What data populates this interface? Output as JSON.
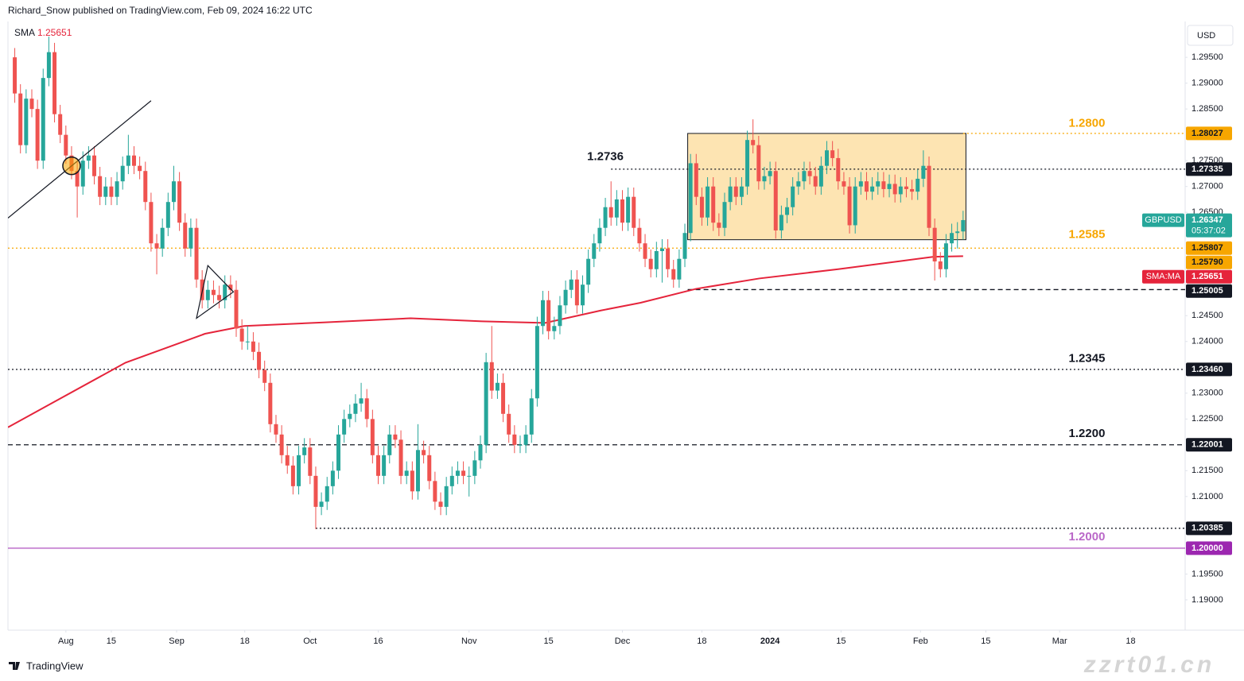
{
  "header": {
    "text": "Richard_Snow published on TradingView.com, Feb 09, 2024 16:22 UTC"
  },
  "footer": {
    "brand": "TradingView",
    "watermark": "zzrt01.cn"
  },
  "chart_data": {
    "type": "candlestick",
    "currency": "USD",
    "up_color": "#26a69a",
    "down_color": "#ef5350",
    "xlim": [
      -1.2,
      206.1
    ],
    "xticks": [
      {
        "value": 9,
        "label": "Aug"
      },
      {
        "value": 17,
        "label": "15"
      },
      {
        "value": 28.5,
        "label": "Sep"
      },
      {
        "value": 40.5,
        "label": "18"
      },
      {
        "value": 52,
        "label": "Oct"
      },
      {
        "value": 64,
        "label": "16"
      },
      {
        "value": 80,
        "label": "Nov"
      },
      {
        "value": 94,
        "label": "15"
      },
      {
        "value": 107,
        "label": "Dec"
      },
      {
        "value": 121,
        "label": "18"
      },
      {
        "value": 133,
        "label": "2024"
      },
      {
        "value": 145.5,
        "label": "15"
      },
      {
        "value": 159.5,
        "label": "Feb"
      },
      {
        "value": 171,
        "label": "15"
      },
      {
        "value": 184,
        "label": "Mar"
      },
      {
        "value": 196.5,
        "label": "18"
      }
    ],
    "ylim": [
      1.18414,
      1.30194
    ],
    "yticks": [
      {
        "value": 1.295,
        "label": "1.29500"
      },
      {
        "value": 1.29,
        "label": "1.29000"
      },
      {
        "value": 1.285,
        "label": "1.28500"
      },
      {
        "value": 1.275,
        "label": "1.27500"
      },
      {
        "value": 1.27,
        "label": "1.27000"
      },
      {
        "value": 1.265,
        "label": "1.26500"
      },
      {
        "value": 1.245,
        "label": "1.24500"
      },
      {
        "value": 1.24,
        "label": "1.24000"
      },
      {
        "value": 1.23,
        "label": "1.23000"
      },
      {
        "value": 1.225,
        "label": "1.22500"
      },
      {
        "value": 1.215,
        "label": "1.21500"
      },
      {
        "value": 1.21,
        "label": "1.21000"
      },
      {
        "value": 1.195,
        "label": "1.19500"
      },
      {
        "value": 1.19,
        "label": "1.19000"
      }
    ],
    "candles": [
      [
        1.295,
        1.2968,
        1.2862,
        1.288
      ],
      [
        1.288,
        1.2898,
        1.2764,
        1.278
      ],
      [
        1.278,
        1.2888,
        1.2764,
        1.287
      ],
      [
        1.287,
        1.2888,
        1.2834,
        1.285
      ],
      [
        1.285,
        1.2868,
        1.2734,
        1.275
      ],
      [
        1.275,
        1.2928,
        1.2734,
        1.291
      ],
      [
        1.291,
        1.299,
        1.2894,
        1.296
      ],
      [
        1.296,
        1.2978,
        1.2824,
        1.284
      ],
      [
        1.284,
        1.2858,
        1.2784,
        1.28
      ],
      [
        1.28,
        1.2818,
        1.2744,
        1.276
      ],
      [
        1.276,
        1.2778,
        1.2714,
        1.273
      ],
      [
        1.273,
        1.2748,
        1.264,
        1.27
      ],
      [
        1.27,
        1.2768,
        1.2684,
        1.275
      ],
      [
        1.275,
        1.2778,
        1.2734,
        1.276
      ],
      [
        1.276,
        1.2778,
        1.2704,
        1.272
      ],
      [
        1.272,
        1.2738,
        1.2664,
        1.268
      ],
      [
        1.268,
        1.2718,
        1.2664,
        1.27
      ],
      [
        1.27,
        1.2718,
        1.2664,
        1.268
      ],
      [
        1.268,
        1.2728,
        1.2664,
        1.271
      ],
      [
        1.271,
        1.2758,
        1.2694,
        1.274
      ],
      [
        1.274,
        1.28,
        1.2724,
        1.276
      ],
      [
        1.276,
        1.2778,
        1.2724,
        1.274
      ],
      [
        1.274,
        1.2758,
        1.2714,
        1.273
      ],
      [
        1.273,
        1.2748,
        1.2654,
        1.267
      ],
      [
        1.267,
        1.2688,
        1.2574,
        1.259
      ],
      [
        1.259,
        1.2608,
        1.253,
        1.258
      ],
      [
        1.258,
        1.2638,
        1.2564,
        1.262
      ],
      [
        1.262,
        1.2688,
        1.2604,
        1.267
      ],
      [
        1.267,
        1.274,
        1.2654,
        1.271
      ],
      [
        1.271,
        1.2728,
        1.2614,
        1.263
      ],
      [
        1.263,
        1.2648,
        1.2564,
        1.258
      ],
      [
        1.258,
        1.2638,
        1.2564,
        1.262
      ],
      [
        1.262,
        1.2638,
        1.2504,
        1.252
      ],
      [
        1.252,
        1.2538,
        1.2464,
        1.248
      ],
      [
        1.248,
        1.2518,
        1.2464,
        1.25
      ],
      [
        1.25,
        1.2518,
        1.2474,
        1.249
      ],
      [
        1.249,
        1.2508,
        1.2464,
        1.248
      ],
      [
        1.248,
        1.2528,
        1.2464,
        1.251
      ],
      [
        1.251,
        1.2528,
        1.2484,
        1.25
      ],
      [
        1.25,
        1.2518,
        1.2409,
        1.2425
      ],
      [
        1.2425,
        1.2443,
        1.2384,
        1.24
      ],
      [
        1.24,
        1.243,
        1.2384,
        1.24
      ],
      [
        1.24,
        1.2418,
        1.2364,
        1.238
      ],
      [
        1.238,
        1.2398,
        1.2329,
        1.2345
      ],
      [
        1.2345,
        1.2363,
        1.2304,
        1.232
      ],
      [
        1.232,
        1.2338,
        1.2224,
        1.224
      ],
      [
        1.224,
        1.2258,
        1.2204,
        1.222
      ],
      [
        1.222,
        1.2238,
        1.2164,
        1.218
      ],
      [
        1.218,
        1.2198,
        1.2144,
        1.216
      ],
      [
        1.216,
        1.2178,
        1.2104,
        1.212
      ],
      [
        1.212,
        1.2198,
        1.2104,
        1.218
      ],
      [
        1.218,
        1.2213,
        1.2164,
        1.2195
      ],
      [
        1.2195,
        1.2213,
        1.2124,
        1.214
      ],
      [
        1.214,
        1.2158,
        1.2037,
        1.208
      ],
      [
        1.208,
        1.2108,
        1.2064,
        1.209
      ],
      [
        1.209,
        1.2138,
        1.2074,
        1.212
      ],
      [
        1.212,
        1.2168,
        1.2104,
        1.215
      ],
      [
        1.215,
        1.2238,
        1.2134,
        1.222
      ],
      [
        1.222,
        1.2268,
        1.2204,
        1.225
      ],
      [
        1.225,
        1.2278,
        1.2234,
        1.226
      ],
      [
        1.226,
        1.2298,
        1.2244,
        1.228
      ],
      [
        1.228,
        1.232,
        1.2264,
        1.229
      ],
      [
        1.229,
        1.2308,
        1.2234,
        1.225
      ],
      [
        1.225,
        1.2268,
        1.2164,
        1.218
      ],
      [
        1.218,
        1.2198,
        1.2124,
        1.214
      ],
      [
        1.214,
        1.2198,
        1.2124,
        1.218
      ],
      [
        1.218,
        1.2238,
        1.2164,
        1.222
      ],
      [
        1.222,
        1.2238,
        1.2194,
        1.221
      ],
      [
        1.221,
        1.2228,
        1.2124,
        1.214
      ],
      [
        1.214,
        1.2168,
        1.2124,
        1.215
      ],
      [
        1.215,
        1.2168,
        1.2094,
        1.211
      ],
      [
        1.211,
        1.224,
        1.2094,
        1.219
      ],
      [
        1.219,
        1.2208,
        1.2164,
        1.218
      ],
      [
        1.218,
        1.2198,
        1.2114,
        1.213
      ],
      [
        1.213,
        1.2148,
        1.2074,
        1.209
      ],
      [
        1.209,
        1.2108,
        1.2064,
        1.208
      ],
      [
        1.208,
        1.2138,
        1.2064,
        1.212
      ],
      [
        1.212,
        1.2158,
        1.2104,
        1.214
      ],
      [
        1.214,
        1.2168,
        1.2124,
        1.215
      ],
      [
        1.215,
        1.2168,
        1.2124,
        1.214
      ],
      [
        1.214,
        1.2158,
        1.21,
        1.214
      ],
      [
        1.214,
        1.2188,
        1.2124,
        1.217
      ],
      [
        1.217,
        1.2218,
        1.2154,
        1.22
      ],
      [
        1.22,
        1.2378,
        1.2184,
        1.236
      ],
      [
        1.236,
        1.243,
        1.2289,
        1.2305
      ],
      [
        1.2305,
        1.2338,
        1.2289,
        1.232
      ],
      [
        1.232,
        1.2338,
        1.2244,
        1.226
      ],
      [
        1.226,
        1.2278,
        1.2204,
        1.222
      ],
      [
        1.222,
        1.2238,
        1.2184,
        1.22
      ],
      [
        1.22,
        1.2218,
        1.2184,
        1.22
      ],
      [
        1.22,
        1.2238,
        1.2184,
        1.222
      ],
      [
        1.222,
        1.2308,
        1.2204,
        1.229
      ],
      [
        1.229,
        1.2448,
        1.2274,
        1.243
      ],
      [
        1.243,
        1.2498,
        1.2414,
        1.248
      ],
      [
        1.248,
        1.2498,
        1.2404,
        1.242
      ],
      [
        1.242,
        1.2448,
        1.2404,
        1.243
      ],
      [
        1.243,
        1.2488,
        1.2414,
        1.247
      ],
      [
        1.247,
        1.2518,
        1.2454,
        1.25
      ],
      [
        1.25,
        1.2538,
        1.2484,
        1.252
      ],
      [
        1.252,
        1.2538,
        1.2454,
        1.247
      ],
      [
        1.247,
        1.2528,
        1.2454,
        1.251
      ],
      [
        1.251,
        1.2578,
        1.2494,
        1.256
      ],
      [
        1.256,
        1.2608,
        1.2544,
        1.259
      ],
      [
        1.259,
        1.2638,
        1.2574,
        1.262
      ],
      [
        1.262,
        1.2678,
        1.2604,
        1.266
      ],
      [
        1.266,
        1.271,
        1.2624,
        1.264
      ],
      [
        1.264,
        1.2693,
        1.2624,
        1.2675
      ],
      [
        1.2675,
        1.2693,
        1.2614,
        1.263
      ],
      [
        1.263,
        1.2698,
        1.2614,
        1.268
      ],
      [
        1.268,
        1.2698,
        1.2604,
        1.262
      ],
      [
        1.262,
        1.2638,
        1.2574,
        1.259
      ],
      [
        1.259,
        1.2608,
        1.2544,
        1.256
      ],
      [
        1.256,
        1.2578,
        1.2524,
        1.254
      ],
      [
        1.254,
        1.2593,
        1.2524,
        1.2575
      ],
      [
        1.2575,
        1.2598,
        1.2514,
        1.258
      ],
      [
        1.258,
        1.2598,
        1.2524,
        1.254
      ],
      [
        1.254,
        1.2558,
        1.2504,
        1.252
      ],
      [
        1.252,
        1.2578,
        1.2504,
        1.256
      ],
      [
        1.256,
        1.2628,
        1.2544,
        1.261
      ],
      [
        1.261,
        1.2763,
        1.2594,
        1.2745
      ],
      [
        1.2745,
        1.2763,
        1.2664,
        1.268
      ],
      [
        1.268,
        1.2698,
        1.2624,
        1.264
      ],
      [
        1.264,
        1.2718,
        1.2624,
        1.27
      ],
      [
        1.27,
        1.2718,
        1.2614,
        1.263
      ],
      [
        1.263,
        1.2648,
        1.2604,
        1.262
      ],
      [
        1.262,
        1.2688,
        1.2604,
        1.267
      ],
      [
        1.267,
        1.2718,
        1.2654,
        1.27
      ],
      [
        1.27,
        1.2718,
        1.2664,
        1.268
      ],
      [
        1.268,
        1.2718,
        1.2664,
        1.27
      ],
      [
        1.27,
        1.2808,
        1.2684,
        1.279
      ],
      [
        1.279,
        1.283,
        1.2764,
        1.278
      ],
      [
        1.278,
        1.2798,
        1.2694,
        1.271
      ],
      [
        1.271,
        1.2738,
        1.2694,
        1.272
      ],
      [
        1.272,
        1.2748,
        1.2704,
        1.273
      ],
      [
        1.273,
        1.2748,
        1.2599,
        1.2615
      ],
      [
        1.2615,
        1.2663,
        1.2599,
        1.2645
      ],
      [
        1.2645,
        1.2678,
        1.2629,
        1.266
      ],
      [
        1.266,
        1.2718,
        1.2644,
        1.27
      ],
      [
        1.27,
        1.2728,
        1.2684,
        1.271
      ],
      [
        1.271,
        1.2748,
        1.2694,
        1.273
      ],
      [
        1.273,
        1.2748,
        1.2704,
        1.272
      ],
      [
        1.272,
        1.2738,
        1.2684,
        1.27
      ],
      [
        1.27,
        1.2758,
        1.2684,
        1.274
      ],
      [
        1.274,
        1.2788,
        1.2724,
        1.277
      ],
      [
        1.277,
        1.2788,
        1.2739,
        1.2755
      ],
      [
        1.2755,
        1.2773,
        1.2694,
        1.271
      ],
      [
        1.271,
        1.2728,
        1.2684,
        1.27
      ],
      [
        1.27,
        1.2718,
        1.2609,
        1.2625
      ],
      [
        1.2625,
        1.2718,
        1.2609,
        1.27
      ],
      [
        1.27,
        1.2728,
        1.2684,
        1.271
      ],
      [
        1.271,
        1.2728,
        1.2674,
        1.269
      ],
      [
        1.269,
        1.2718,
        1.2674,
        1.27
      ],
      [
        1.27,
        1.2728,
        1.2684,
        1.271
      ],
      [
        1.271,
        1.2728,
        1.2679,
        1.2695
      ],
      [
        1.2695,
        1.2723,
        1.2679,
        1.2705
      ],
      [
        1.2705,
        1.2723,
        1.2669,
        1.2685
      ],
      [
        1.2685,
        1.2718,
        1.2669,
        1.27
      ],
      [
        1.27,
        1.2718,
        1.2679,
        1.2695
      ],
      [
        1.2695,
        1.2713,
        1.2674,
        1.269
      ],
      [
        1.269,
        1.2733,
        1.2674,
        1.2715
      ],
      [
        1.2715,
        1.277,
        1.2699,
        1.274
      ],
      [
        1.274,
        1.2758,
        1.2604,
        1.262
      ],
      [
        1.262,
        1.2638,
        1.2518,
        1.2555
      ],
      [
        1.2555,
        1.2573,
        1.2524,
        1.254
      ],
      [
        1.254,
        1.2608,
        1.2524,
        1.259
      ],
      [
        1.259,
        1.2628,
        1.2574,
        1.261
      ],
      [
        1.261,
        1.2631,
        1.258,
        1.2613
      ],
      [
        1.2613,
        1.2653,
        1.2597,
        1.2635
      ]
    ],
    "sma": {
      "name": "SMA",
      "value_label": "1.25651",
      "color": "#e5243b",
      "x": [
        -1.2,
        19.5,
        33.5,
        40.4,
        54.4,
        69.7,
        82.3,
        93.4,
        103.2,
        110.2,
        120,
        131.1,
        145,
        156.2,
        161.8,
        167
      ],
      "values": [
        1.2234,
        1.2359,
        1.2415,
        1.243,
        1.2437,
        1.2445,
        1.2439,
        1.2436,
        1.246,
        1.2475,
        1.2502,
        1.2522,
        1.254,
        1.2556,
        1.2564,
        1.25651
      ]
    },
    "box": {
      "x": [
        118.5,
        167.5
      ],
      "y": [
        1.2597,
        1.28027
      ],
      "color": "#f7a600"
    },
    "trendline": {
      "x": [
        -1.2,
        24
      ],
      "y": [
        1.2639,
        1.2866
      ]
    },
    "marker": {
      "x": [
        10
      ],
      "y": [
        1.274
      ]
    },
    "triangle": {
      "x": [
        34,
        38.5,
        32
      ],
      "y": [
        1.2547,
        1.2496,
        1.2445
      ]
    },
    "lines": [
      {
        "value": 1.28027,
        "from": 167,
        "style": "dotted",
        "color": "#f7a600"
      },
      {
        "value": 1.27335,
        "from": 105,
        "style": "dotted",
        "color": "#131722"
      },
      {
        "value": 1.25807,
        "style": "dotted",
        "color": "#f7a600"
      },
      {
        "value": 1.25005,
        "from": 118.5,
        "style": "dashed",
        "color": "#131722"
      },
      {
        "value": 1.2346,
        "style": "dotted",
        "color": "#131722"
      },
      {
        "value": 1.22001,
        "style": "dashed",
        "color": "#131722"
      },
      {
        "value": 1.20385,
        "from": 53,
        "style": "dotted",
        "color": "#131722"
      },
      {
        "value": 1.2,
        "style": "solid",
        "color": "#9c27b0"
      }
    ],
    "level_labels": [
      {
        "value": 1.28,
        "label": "1.2800",
        "x": 188.8,
        "color": "#f7a600"
      },
      {
        "value": 1.2736,
        "label": "1.2736",
        "x": 104,
        "color": "#131722"
      },
      {
        "value": 1.2585,
        "label": "1.2585",
        "x": 188.8,
        "color": "#f7a600"
      },
      {
        "value": 1.2345,
        "label": "1.2345",
        "x": 188.8,
        "color": "#131722"
      },
      {
        "value": 1.22,
        "label": "1.2200",
        "x": 188.8,
        "color": "#131722"
      },
      {
        "value": 1.2,
        "label": "1.2000",
        "x": 188.8,
        "color": "#ba68c8"
      }
    ],
    "tags": [
      {
        "value": 1.28027,
        "label": "1.28027",
        "color": "#f7a600",
        "text_color": "#131722"
      },
      {
        "value": 1.27335,
        "label": "1.27335",
        "color": "#131722",
        "text_color": "#ffffff"
      },
      {
        "value": 1.26347,
        "label": "1.26347",
        "color": "#26a69a",
        "text_color": "#ffffff",
        "name": "GBPUSD",
        "sub": "05:37:02"
      },
      {
        "value": 1.25807,
        "label": "1.25807",
        "color": "#f7a600",
        "text_color": "#131722"
      },
      {
        "value": 1.2579,
        "label": "1.25790",
        "color": "#f7a600",
        "text_color": "#131722"
      },
      {
        "value": 1.25651,
        "label": "1.25651",
        "color": "#e5243b",
        "text_color": "#ffffff",
        "name": "SMA:MA"
      },
      {
        "value": 1.25005,
        "label": "1.25005",
        "color": "#131722",
        "text_color": "#ffffff"
      },
      {
        "value": 1.2346,
        "label": "1.23460",
        "color": "#131722",
        "text_color": "#ffffff"
      },
      {
        "value": 1.22001,
        "label": "1.22001",
        "color": "#131722",
        "text_color": "#ffffff"
      },
      {
        "value": 1.20385,
        "label": "1.20385",
        "color": "#131722",
        "text_color": "#ffffff"
      },
      {
        "value": 1.2,
        "label": "1.20000",
        "color": "#9c27b0",
        "text_color": "#ffffff"
      }
    ]
  }
}
